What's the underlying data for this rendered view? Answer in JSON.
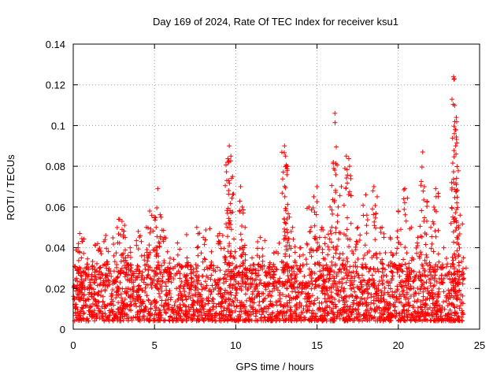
{
  "chart_data": {
    "type": "scatter",
    "title": "Day 169 of 2024, Rate Of TEC Index for receiver ksu1",
    "xlabel": "GPS time / hours",
    "ylabel": "ROTI / TECUs",
    "xlim": [
      0,
      25
    ],
    "ylim": [
      0,
      0.14
    ],
    "xticks": [
      0,
      5,
      10,
      15,
      20,
      25
    ],
    "yticks": [
      0,
      0.02,
      0.04,
      0.06,
      0.08,
      0.1,
      0.12,
      0.14
    ],
    "xtick_labels": [
      "0",
      "5",
      "10",
      "15",
      "20",
      "25"
    ],
    "ytick_labels": [
      "0",
      "0.02",
      "0.04",
      "0.06",
      "0.08",
      "0.1",
      "0.12",
      "0.14"
    ],
    "grid": true,
    "marker": "+",
    "marker_color": "#ff0000",
    "series": [
      {
        "name": "ROTI",
        "points": [
          [
            0.1,
            0.012
          ],
          [
            0.2,
            0.025
          ],
          [
            0.3,
            0.04
          ],
          [
            0.4,
            0.047
          ],
          [
            0.5,
            0.035
          ],
          [
            0.8,
            0.03
          ],
          [
            1.0,
            0.02
          ],
          [
            1.5,
            0.042
          ],
          [
            1.6,
            0.039
          ],
          [
            2.0,
            0.046
          ],
          [
            2.1,
            0.033
          ],
          [
            2.5,
            0.036
          ],
          [
            2.8,
            0.054
          ],
          [
            3.0,
            0.053
          ],
          [
            3.2,
            0.045
          ],
          [
            3.5,
            0.04
          ],
          [
            4.0,
            0.048
          ],
          [
            4.5,
            0.05
          ],
          [
            4.7,
            0.058
          ],
          [
            5.0,
            0.055
          ],
          [
            5.1,
            0.05
          ],
          [
            5.2,
            0.069
          ],
          [
            5.4,
            0.055
          ],
          [
            5.6,
            0.045
          ],
          [
            5.8,
            0.038
          ],
          [
            6.0,
            0.03
          ],
          [
            6.5,
            0.032
          ],
          [
            7.0,
            0.035
          ],
          [
            7.3,
            0.028
          ],
          [
            7.6,
            0.05
          ],
          [
            8.0,
            0.045
          ],
          [
            8.5,
            0.038
          ],
          [
            9.0,
            0.047
          ],
          [
            9.2,
            0.046
          ],
          [
            9.5,
            0.082
          ],
          [
            9.6,
            0.09
          ],
          [
            9.7,
            0.085
          ],
          [
            9.8,
            0.075
          ],
          [
            10.0,
            0.03
          ],
          [
            10.3,
            0.07
          ],
          [
            10.4,
            0.06
          ],
          [
            10.5,
            0.04
          ],
          [
            11.0,
            0.035
          ],
          [
            11.5,
            0.045
          ],
          [
            12.0,
            0.03
          ],
          [
            12.5,
            0.038
          ],
          [
            13.0,
            0.09
          ],
          [
            13.05,
            0.085
          ],
          [
            13.1,
            0.08
          ],
          [
            13.3,
            0.055
          ],
          [
            13.5,
            0.05
          ],
          [
            14.0,
            0.04
          ],
          [
            14.5,
            0.06
          ],
          [
            14.8,
            0.065
          ],
          [
            15.0,
            0.07
          ],
          [
            15.3,
            0.05
          ],
          [
            15.5,
            0.045
          ],
          [
            15.8,
            0.06
          ],
          [
            16.0,
            0.082
          ],
          [
            16.1,
            0.106
          ],
          [
            16.3,
            0.06
          ],
          [
            16.5,
            0.07
          ],
          [
            16.8,
            0.085
          ],
          [
            17.0,
            0.08
          ],
          [
            17.5,
            0.05
          ],
          [
            18.0,
            0.066
          ],
          [
            18.5,
            0.07
          ],
          [
            18.7,
            0.065
          ],
          [
            19.0,
            0.05
          ],
          [
            19.5,
            0.045
          ],
          [
            20.0,
            0.058
          ],
          [
            20.4,
            0.069
          ],
          [
            20.8,
            0.05
          ],
          [
            21.2,
            0.045
          ],
          [
            21.5,
            0.087
          ],
          [
            21.6,
            0.07
          ],
          [
            22.0,
            0.05
          ],
          [
            22.3,
            0.069
          ],
          [
            22.8,
            0.04
          ],
          [
            23.4,
            0.124
          ],
          [
            23.45,
            0.123
          ],
          [
            23.5,
            0.098
          ],
          [
            23.55,
            0.086
          ],
          [
            23.6,
            0.062
          ],
          [
            23.8,
            0.056
          ],
          [
            24.0,
            0.035
          ]
        ]
      }
    ]
  }
}
